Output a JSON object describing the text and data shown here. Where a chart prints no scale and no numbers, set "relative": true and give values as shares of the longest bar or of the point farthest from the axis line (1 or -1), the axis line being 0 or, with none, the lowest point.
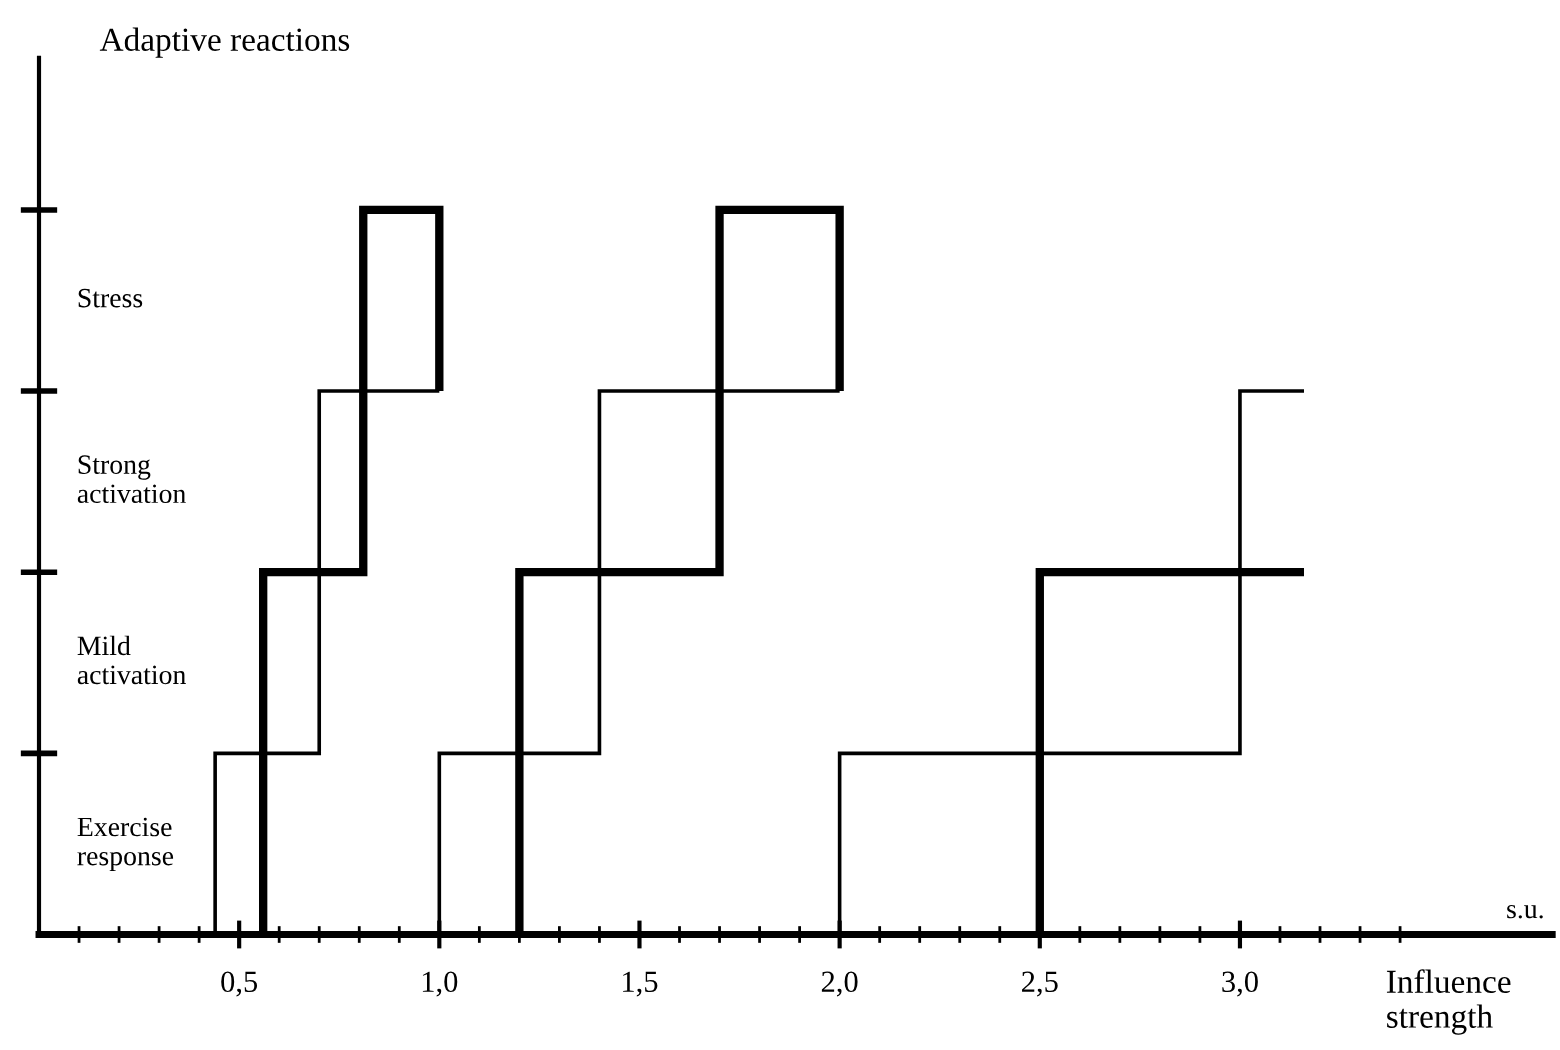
{
  "chart_data": {
    "type": "step",
    "relative": true,
    "ylabel": "Adaptive reactions",
    "xlabel": "Influence\nstrength",
    "annotations": [
      "s.u.",
      "Exercise\nresponse",
      "Mild\nactivation",
      "Strong\nactivation",
      "Stress"
    ],
    "series": [
      {
        "color": "#000000",
        "x": [
          0.44,
          0.44,
          0.7,
          1.0
        ],
        "values": [
          0,
          0.25,
          0.75,
          0.75
        ]
      },
      {
        "color": "#000000",
        "x": [
          0.56,
          0.56,
          0.81,
          1.0,
          1.0
        ],
        "values": [
          0,
          0.5,
          1,
          1,
          0.75
        ]
      },
      {
        "color": "#000000",
        "x": [
          1.0,
          1.0,
          1.4,
          2.0
        ],
        "values": [
          0,
          0.25,
          0.75,
          0.75
        ]
      },
      {
        "color": "#000000",
        "x": [
          1.2,
          1.2,
          1.7,
          2.0,
          2.0
        ],
        "values": [
          0,
          0.5,
          1,
          1,
          0.75
        ]
      },
      {
        "color": "#000000",
        "x": [
          2.0,
          2.0,
          3.0,
          3.16
        ],
        "values": [
          0,
          0.25,
          0.75,
          0.75
        ]
      },
      {
        "color": "#000000",
        "x": [
          2.5,
          2.5,
          3.16
        ],
        "values": [
          0,
          0.5,
          0.5
        ]
      }
    ],
    "xlim": [
      0,
      3.78
    ],
    "xticks": [
      {
        "value": 0.1,
        "label": null
      },
      {
        "value": 0.2,
        "label": null
      },
      {
        "value": 0.3,
        "label": null
      },
      {
        "value": 0.4,
        "label": null
      },
      {
        "value": 0.5,
        "label": "0,5"
      },
      {
        "value": 0.6,
        "label": null
      },
      {
        "value": 0.7,
        "label": null
      },
      {
        "value": 0.8,
        "label": null
      },
      {
        "value": 0.9,
        "label": null
      },
      {
        "value": 1.0,
        "label": "1,0"
      },
      {
        "value": 1.1,
        "label": null
      },
      {
        "value": 1.2,
        "label": null
      },
      {
        "value": 1.3,
        "label": null
      },
      {
        "value": 1.4,
        "label": null
      },
      {
        "value": 1.5,
        "label": "1,5"
      },
      {
        "value": 1.6,
        "label": null
      },
      {
        "value": 1.7,
        "label": null
      },
      {
        "value": 1.8,
        "label": null
      },
      {
        "value": 1.9,
        "label": null
      },
      {
        "value": 2.0,
        "label": "2,0"
      },
      {
        "value": 2.1,
        "label": null
      },
      {
        "value": 2.2,
        "label": null
      },
      {
        "value": 2.3,
        "label": null
      },
      {
        "value": 2.4,
        "label": null
      },
      {
        "value": 2.5,
        "label": "2,5"
      },
      {
        "value": 2.6,
        "label": null
      },
      {
        "value": 2.7,
        "label": null
      },
      {
        "value": 2.8,
        "label": null
      },
      {
        "value": 2.9,
        "label": null
      },
      {
        "value": 3.0,
        "label": "3,0"
      },
      {
        "value": 3.1,
        "label": null
      },
      {
        "value": 3.2,
        "label": null
      },
      {
        "value": 3.3,
        "label": null
      },
      {
        "value": 3.4,
        "label": null
      }
    ]
  }
}
